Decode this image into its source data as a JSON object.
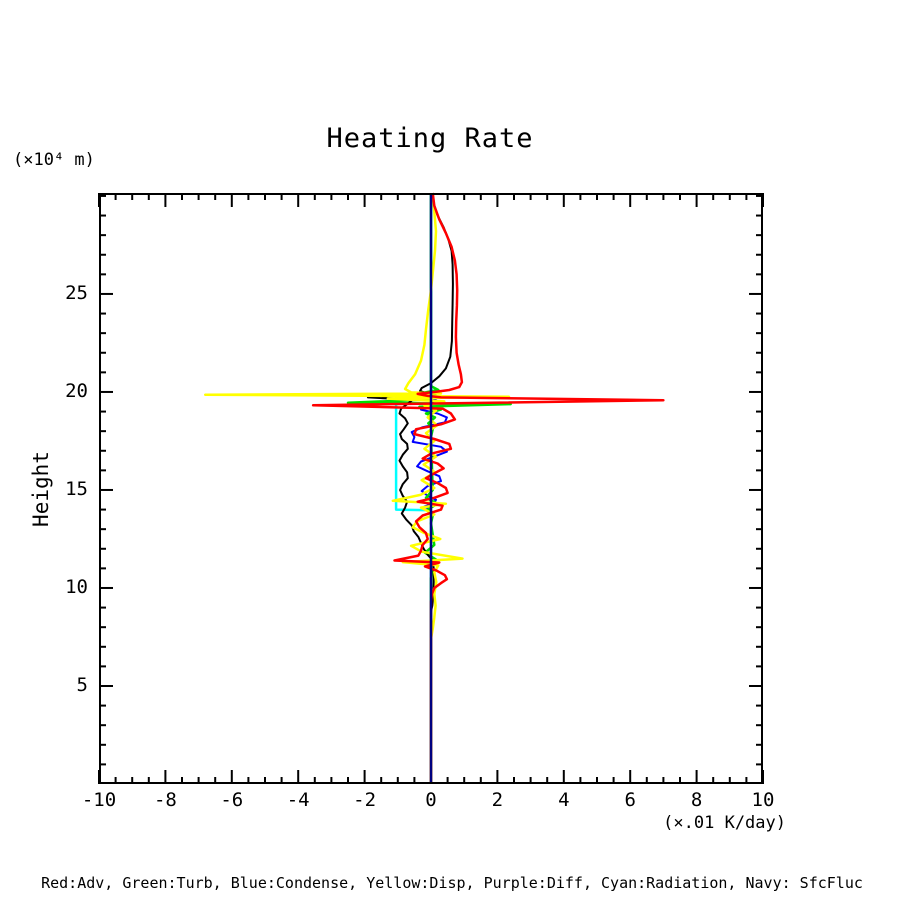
{
  "figure": {
    "title": "Heating Rate",
    "y_unit_label": "(×10⁴ m)",
    "y_axis_label": "Height",
    "x_unit_label": "(×.01 K/day)",
    "legend_text": "Red:Adv, Green:Turb, Blue:Condense, Yellow:Disp, Purple:Diff, Cyan:Radiation, Navy: SfcFluc"
  },
  "chart_data": {
    "type": "line",
    "title": "Heating Rate",
    "xlabel": "(×.01 K/day)",
    "ylabel": "Height (×10⁴ m)",
    "grid": false,
    "legend_position": "bottom-text-line",
    "x_axis": {
      "min": -10,
      "max": 10,
      "major_ticks": [
        -10,
        -8,
        -6,
        -4,
        -2,
        0,
        2,
        4,
        6,
        8,
        10
      ],
      "tick_labels": [
        "-10",
        "-8",
        "-6",
        "-4",
        "-2",
        "0",
        "2",
        "4",
        "6",
        "8",
        "10"
      ],
      "minor_tick_step": 0.5
    },
    "y_axis": {
      "min": 0,
      "max": 30.15,
      "major_ticks": [
        5,
        10,
        15,
        20,
        25
      ],
      "tick_labels": [
        "5",
        "10",
        "15",
        "20",
        "25"
      ],
      "minor_tick_step": 1
    },
    "series": [
      {
        "name": "diff",
        "legend_label": "Purple:Diff",
        "color": "#9932cc",
        "width": 2,
        "points": [
          [
            0,
            30.15
          ],
          [
            0,
            0
          ]
        ]
      },
      {
        "name": "radiation",
        "legend_label": "Cyan:Radiation",
        "color": "#00ffff",
        "width": 2.5,
        "points": [
          [
            0,
            30.15
          ],
          [
            0,
            20.1
          ],
          [
            0.12,
            20.0
          ],
          [
            0.12,
            19.9
          ],
          [
            -1.05,
            19.88
          ],
          [
            -1.05,
            14.0
          ],
          [
            0,
            13.97
          ],
          [
            0,
            0
          ]
        ]
      },
      {
        "name": "condense",
        "legend_label": "Blue:Condense",
        "color": "#0000ff",
        "width": 2,
        "points": [
          [
            0,
            30.15
          ],
          [
            0,
            19.75
          ],
          [
            0.18,
            19.55
          ],
          [
            -0.05,
            19.35
          ],
          [
            -0.3,
            19.1
          ],
          [
            0.2,
            18.9
          ],
          [
            0.48,
            18.7
          ],
          [
            0.42,
            18.45
          ],
          [
            -0.25,
            18.2
          ],
          [
            -0.58,
            17.95
          ],
          [
            -0.5,
            17.7
          ],
          [
            -0.55,
            17.45
          ],
          [
            0.3,
            17.2
          ],
          [
            0.48,
            16.95
          ],
          [
            0.1,
            16.7
          ],
          [
            -0.3,
            16.45
          ],
          [
            -0.42,
            16.2
          ],
          [
            -0.1,
            15.95
          ],
          [
            0.25,
            15.7
          ],
          [
            0.3,
            15.45
          ],
          [
            -0.1,
            15.2
          ],
          [
            -0.28,
            14.95
          ],
          [
            -0.1,
            14.7
          ],
          [
            0.15,
            14.5
          ],
          [
            0.05,
            14.3
          ],
          [
            -0.2,
            14.15
          ],
          [
            0,
            14.0
          ],
          [
            0,
            0
          ]
        ]
      },
      {
        "name": "turb",
        "legend_label": "Green:Turb",
        "color": "#00dd00",
        "width": 2.5,
        "points": [
          [
            0,
            30.15
          ],
          [
            0,
            20.3
          ],
          [
            0.22,
            20.1
          ],
          [
            -0.25,
            19.95
          ],
          [
            0.15,
            19.8
          ],
          [
            -0.2,
            19.6
          ],
          [
            -2.5,
            19.45
          ],
          [
            2.4,
            19.38
          ],
          [
            -0.35,
            19.25
          ],
          [
            0.3,
            19.1
          ],
          [
            -0.15,
            18.9
          ],
          [
            0.12,
            18.7
          ],
          [
            -0.08,
            18.4
          ],
          [
            0.05,
            18.1
          ],
          [
            0,
            17.7
          ],
          [
            0.05,
            15.0
          ],
          [
            -0.15,
            14.6
          ],
          [
            0.2,
            14.3
          ],
          [
            -0.1,
            14.0
          ],
          [
            0.05,
            13.7
          ],
          [
            0,
            13.3
          ],
          [
            0.1,
            12.2
          ],
          [
            -0.18,
            11.8
          ],
          [
            0.15,
            11.45
          ],
          [
            -0.1,
            11.2
          ],
          [
            0.05,
            10.9
          ],
          [
            0,
            10.5
          ],
          [
            0,
            0
          ]
        ]
      },
      {
        "name": "total",
        "legend_label": "",
        "color": "#000000",
        "width": 2,
        "points": [
          [
            0.05,
            30.15
          ],
          [
            0.08,
            29.6
          ],
          [
            0.2,
            29.0
          ],
          [
            0.38,
            28.4
          ],
          [
            0.52,
            27.8
          ],
          [
            0.62,
            27.2
          ],
          [
            0.65,
            26.5
          ],
          [
            0.66,
            25.5
          ],
          [
            0.65,
            24.5
          ],
          [
            0.64,
            23.5
          ],
          [
            0.63,
            22.6
          ],
          [
            0.58,
            21.8
          ],
          [
            0.45,
            21.2
          ],
          [
            0.25,
            20.8
          ],
          [
            0,
            20.45
          ],
          [
            -0.28,
            20.2
          ],
          [
            -0.33,
            20.05
          ],
          [
            -0.15,
            19.95
          ],
          [
            -0.5,
            19.85
          ],
          [
            -1.9,
            19.72
          ],
          [
            -0.55,
            19.6
          ],
          [
            -0.7,
            19.4
          ],
          [
            -0.9,
            19.15
          ],
          [
            -0.95,
            18.9
          ],
          [
            -0.78,
            18.65
          ],
          [
            -0.7,
            18.4
          ],
          [
            -0.82,
            18.1
          ],
          [
            -0.93,
            17.85
          ],
          [
            -0.88,
            17.6
          ],
          [
            -0.72,
            17.35
          ],
          [
            -0.7,
            17.1
          ],
          [
            -0.85,
            16.8
          ],
          [
            -0.95,
            16.5
          ],
          [
            -0.85,
            16.2
          ],
          [
            -0.72,
            15.9
          ],
          [
            -0.7,
            15.6
          ],
          [
            -0.85,
            15.3
          ],
          [
            -0.93,
            15.0
          ],
          [
            -0.85,
            14.7
          ],
          [
            -0.72,
            14.4
          ],
          [
            -0.78,
            14.1
          ],
          [
            -0.88,
            13.8
          ],
          [
            -0.75,
            13.5
          ],
          [
            -0.58,
            13.2
          ],
          [
            -0.52,
            12.9
          ],
          [
            -0.38,
            12.6
          ],
          [
            -0.3,
            12.3
          ],
          [
            -0.22,
            12.0
          ],
          [
            -0.1,
            11.7
          ],
          [
            0.05,
            11.4
          ],
          [
            0.08,
            11.0
          ],
          [
            0.08,
            10.3
          ],
          [
            0.07,
            9.6
          ],
          [
            0.04,
            9.1
          ],
          [
            0,
            8.8
          ],
          [
            0,
            0
          ]
        ]
      },
      {
        "name": "disp",
        "legend_label": "Yellow:Disp",
        "color": "#ffff00",
        "width": 2.5,
        "points": [
          [
            0.05,
            30.15
          ],
          [
            0.1,
            29.2
          ],
          [
            0.15,
            28.2
          ],
          [
            0.12,
            27.2
          ],
          [
            0.06,
            26.2
          ],
          [
            0,
            25.2
          ],
          [
            -0.08,
            24.2
          ],
          [
            -0.15,
            23.2
          ],
          [
            -0.2,
            22.4
          ],
          [
            -0.3,
            21.6
          ],
          [
            -0.48,
            20.9
          ],
          [
            -0.68,
            20.45
          ],
          [
            -0.78,
            20.15
          ],
          [
            -0.6,
            19.98
          ],
          [
            0.3,
            19.92
          ],
          [
            -6.8,
            19.86
          ],
          [
            2.35,
            19.76
          ],
          [
            -1.3,
            19.66
          ],
          [
            0.4,
            19.52
          ],
          [
            -0.2,
            19.3
          ],
          [
            0.15,
            19.05
          ],
          [
            -0.1,
            18.7
          ],
          [
            0.18,
            18.3
          ],
          [
            -0.15,
            17.9
          ],
          [
            0.1,
            17.5
          ],
          [
            -0.2,
            17.1
          ],
          [
            0.15,
            16.7
          ],
          [
            -0.22,
            16.3
          ],
          [
            0.12,
            15.9
          ],
          [
            -0.28,
            15.5
          ],
          [
            0.1,
            15.1
          ],
          [
            -0.32,
            14.75
          ],
          [
            -1.15,
            14.45
          ],
          [
            0.45,
            14.3
          ],
          [
            -0.3,
            14.1
          ],
          [
            0.1,
            13.75
          ],
          [
            -0.42,
            13.4
          ],
          [
            -0.55,
            13.1
          ],
          [
            -0.2,
            12.8
          ],
          [
            0.28,
            12.5
          ],
          [
            -0.6,
            12.15
          ],
          [
            -0.28,
            11.85
          ],
          [
            0.95,
            11.5
          ],
          [
            -0.85,
            11.32
          ],
          [
            0.22,
            11.15
          ],
          [
            0.1,
            10.8
          ],
          [
            0.16,
            10.3
          ],
          [
            0.1,
            9.7
          ],
          [
            0.14,
            9.1
          ],
          [
            0.1,
            8.5
          ],
          [
            0.05,
            7.9
          ],
          [
            0,
            7.4
          ],
          [
            0,
            0
          ]
        ]
      },
      {
        "name": "adv",
        "legend_label": "Red:Adv",
        "color": "#ff0000",
        "width": 2.5,
        "points": [
          [
            0.05,
            30.15
          ],
          [
            0.1,
            29.5
          ],
          [
            0.25,
            28.8
          ],
          [
            0.45,
            28.1
          ],
          [
            0.62,
            27.4
          ],
          [
            0.72,
            26.7
          ],
          [
            0.77,
            26.0
          ],
          [
            0.79,
            25.2
          ],
          [
            0.78,
            24.4
          ],
          [
            0.76,
            23.6
          ],
          [
            0.75,
            22.8
          ],
          [
            0.77,
            22.0
          ],
          [
            0.83,
            21.4
          ],
          [
            0.9,
            20.9
          ],
          [
            0.93,
            20.5
          ],
          [
            0.85,
            20.25
          ],
          [
            0.55,
            20.1
          ],
          [
            0.1,
            20.0
          ],
          [
            -0.4,
            19.9
          ],
          [
            -0.1,
            19.8
          ],
          [
            0.3,
            19.72
          ],
          [
            7.0,
            19.58
          ],
          [
            -3.55,
            19.32
          ],
          [
            0.35,
            19.15
          ],
          [
            0.6,
            18.9
          ],
          [
            0.72,
            18.6
          ],
          [
            0.3,
            18.35
          ],
          [
            -0.45,
            18.1
          ],
          [
            -0.5,
            17.85
          ],
          [
            0.1,
            17.6
          ],
          [
            0.55,
            17.35
          ],
          [
            0.6,
            17.1
          ],
          [
            0,
            16.85
          ],
          [
            -0.25,
            16.6
          ],
          [
            0.2,
            16.35
          ],
          [
            0.38,
            16.1
          ],
          [
            0.1,
            15.85
          ],
          [
            -0.15,
            15.6
          ],
          [
            0.2,
            15.35
          ],
          [
            0.45,
            15.1
          ],
          [
            0.5,
            14.85
          ],
          [
            0.1,
            14.6
          ],
          [
            -0.4,
            14.4
          ],
          [
            0.35,
            14.2
          ],
          [
            0.3,
            14.0
          ],
          [
            -0.25,
            13.7
          ],
          [
            -0.45,
            13.4
          ],
          [
            -0.35,
            13.1
          ],
          [
            -0.15,
            12.8
          ],
          [
            -0.1,
            12.5
          ],
          [
            -0.25,
            12.2
          ],
          [
            -0.3,
            11.9
          ],
          [
            -0.38,
            11.65
          ],
          [
            -1.1,
            11.4
          ],
          [
            0.25,
            11.3
          ],
          [
            -0.18,
            11.1
          ],
          [
            0.15,
            10.9
          ],
          [
            0.42,
            10.65
          ],
          [
            0.48,
            10.45
          ],
          [
            0.3,
            10.25
          ],
          [
            0.1,
            10.0
          ],
          [
            0.03,
            9.7
          ],
          [
            0,
            9.3
          ],
          [
            0,
            0
          ]
        ]
      },
      {
        "name": "sfcfluc",
        "legend_label": "Navy: SfcFluc",
        "color": "#000080",
        "width": 2.5,
        "points": [
          [
            0,
            30.15
          ],
          [
            0,
            0
          ]
        ]
      }
    ]
  },
  "colors": {
    "red": "#ff0000",
    "green": "#00dd00",
    "blue": "#0000ff",
    "yellow": "#ffff00",
    "purple": "#9932cc",
    "cyan": "#00ffff",
    "navy": "#000080",
    "axis": "#000000"
  }
}
